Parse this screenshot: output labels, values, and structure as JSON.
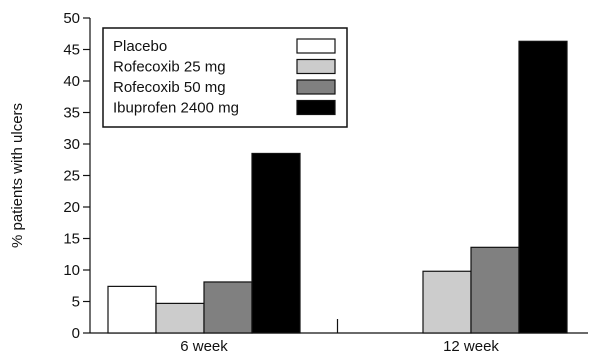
{
  "chart_data": {
    "type": "bar",
    "categories": [
      "6 week",
      "12 week"
    ],
    "series": [
      {
        "name": "Placebo",
        "color": "#ffffff",
        "values": [
          7.4,
          null
        ]
      },
      {
        "name": "Rofecoxib 25 mg",
        "color": "#cccccc",
        "values": [
          4.7,
          9.8
        ]
      },
      {
        "name": "Rofecoxib 50 mg",
        "color": "#808080",
        "values": [
          8.1,
          13.6
        ]
      },
      {
        "name": "Ibuprofen 2400 mg",
        "color": "#000000",
        "values": [
          28.5,
          46.3
        ]
      }
    ],
    "title": "",
    "xlabel": "",
    "ylabel": "% patients with ulcers",
    "ylim": [
      0,
      50
    ],
    "yticks": [
      0,
      5,
      10,
      15,
      20,
      25,
      30,
      35,
      40,
      45,
      50
    ],
    "grid": false,
    "legend_position": "top-left"
  }
}
